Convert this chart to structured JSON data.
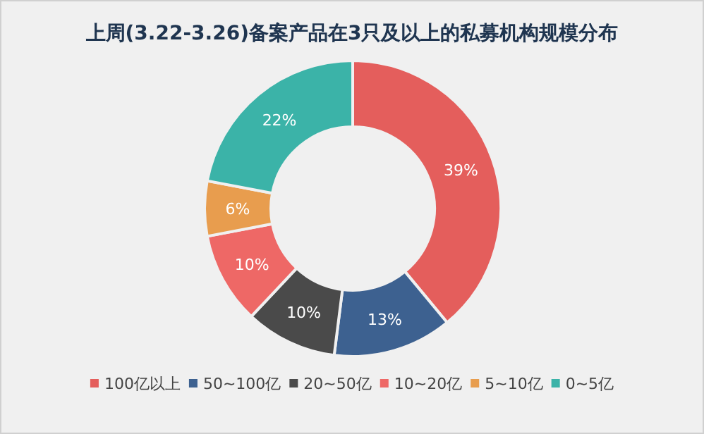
{
  "chart_data": {
    "type": "donut",
    "title": "上周(3.22-3.26)备案产品在3只及以上的私募机构规模分布",
    "categories": [
      "100亿以上",
      "50~100亿",
      "20~50亿",
      "10~20亿",
      "5~10亿",
      "0~5亿"
    ],
    "values": [
      39,
      13,
      10,
      10,
      6,
      22
    ],
    "colors": [
      "#e45e5c",
      "#3d6190",
      "#4a4a4a",
      "#ee6866",
      "#e89d4e",
      "#3bb3a8"
    ],
    "value_labels": [
      "39%",
      "13%",
      "10%",
      "10%",
      "6%",
      "22%"
    ],
    "legend": "bottom"
  }
}
